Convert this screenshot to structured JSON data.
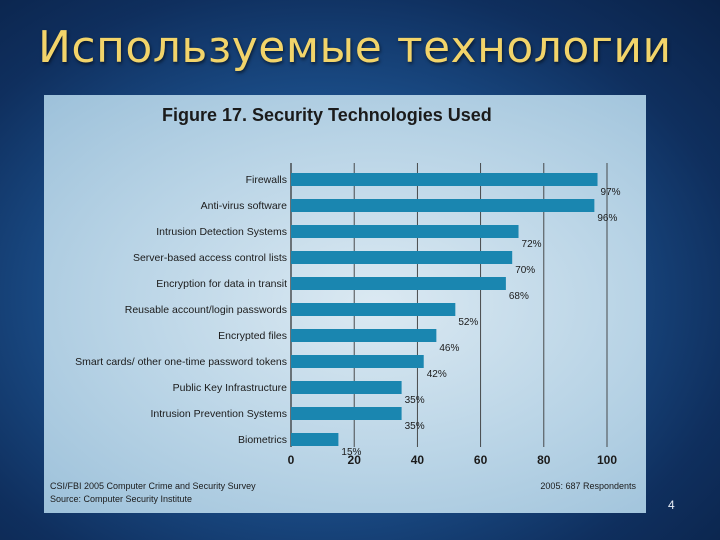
{
  "slide": {
    "title": "Используемые технологии",
    "page_number": "4"
  },
  "chart_data": {
    "type": "bar",
    "orientation": "horizontal",
    "title": "Figure 17. Security Technologies Used",
    "categories": [
      "Firewalls",
      "Anti-virus software",
      "Intrusion Detection Systems",
      "Server-based access control lists",
      "Encryption for data in transit",
      "Reusable account/login passwords",
      "Encrypted files",
      "Smart cards/ other one-time password tokens",
      "Public Key Infrastructure",
      "Intrusion Prevention Systems",
      "Biometrics"
    ],
    "values": [
      97,
      96,
      72,
      70,
      68,
      52,
      46,
      42,
      35,
      35,
      15
    ],
    "data_labels": [
      "97%",
      "96%",
      "72%",
      "70%",
      "68%",
      "52%",
      "46%",
      "42%",
      "35%",
      "35%",
      "15%"
    ],
    "xlim": [
      0,
      100
    ],
    "xticks": [
      0,
      20,
      40,
      60,
      80,
      100
    ],
    "grid": true,
    "bar_color": "#1a86b0",
    "source_line1": "CSI/FBI 2005 Computer Crime and Security Survey",
    "source_line2": "Source: Computer Security Institute",
    "respondents": "2005: 687 Respondents"
  }
}
